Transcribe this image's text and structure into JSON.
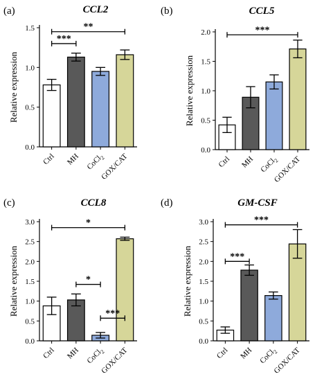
{
  "chart_data": [
    {
      "type": "bar",
      "panel": "(a)",
      "title": "CCL2",
      "ylabel": "Relative expression",
      "ylim": [
        0,
        1.5
      ],
      "yticks": [
        "0.0",
        "0.5",
        "1.0",
        "1.5"
      ],
      "categories": [
        "Ctrl",
        "MH",
        "CoCl2",
        "GOX/CAT"
      ],
      "values": [
        0.78,
        1.13,
        0.95,
        1.16
      ],
      "errors": [
        0.07,
        0.05,
        0.05,
        0.06
      ],
      "colors": [
        "#ffffff",
        "#595959",
        "#8eaadb",
        "#d6d699"
      ],
      "significance": [
        {
          "from": 0,
          "to": 1,
          "label": "***",
          "y": 1.3
        },
        {
          "from": 0,
          "to": 3,
          "label": "**",
          "y": 1.45
        }
      ]
    },
    {
      "type": "bar",
      "panel": "(b)",
      "title": "CCL5",
      "ylabel": "Relative expression",
      "ylim": [
        0,
        2.0
      ],
      "yticks": [
        "0.0",
        "0.5",
        "1.0",
        "1.5",
        "2.0"
      ],
      "categories": [
        "Ctrl",
        "MH",
        "CoCl2",
        "GOX/CAT"
      ],
      "values": [
        0.42,
        0.89,
        1.15,
        1.71
      ],
      "errors": [
        0.13,
        0.18,
        0.12,
        0.15
      ],
      "colors": [
        "#ffffff",
        "#595959",
        "#8eaadb",
        "#d6d699"
      ],
      "significance": [
        {
          "from": 0,
          "to": 3,
          "label": "***",
          "y": 1.95
        }
      ]
    },
    {
      "type": "bar",
      "panel": "(c)",
      "title": "CCL8",
      "ylabel": "Relative expression",
      "ylim": [
        0,
        3.0
      ],
      "yticks": [
        "0.0",
        "0.5",
        "1.0",
        "1.5",
        "2.0",
        "2.5",
        "3.0"
      ],
      "categories": [
        "Ctrl",
        "MH",
        "CoCl2",
        "GOX/CAT"
      ],
      "values": [
        0.88,
        1.03,
        0.14,
        2.57
      ],
      "errors": [
        0.22,
        0.15,
        0.07,
        0.04
      ],
      "colors": [
        "#ffffff",
        "#595959",
        "#8eaadb",
        "#d6d699"
      ],
      "significance": [
        {
          "from": 0,
          "to": 3,
          "label": "*",
          "y": 2.85
        },
        {
          "from": 1,
          "to": 2,
          "label": "*",
          "y": 1.42
        },
        {
          "from": 2,
          "to": 3,
          "label": "***",
          "y": 0.57
        }
      ]
    },
    {
      "type": "bar",
      "panel": "(d)",
      "title": "GM-CSF",
      "ylabel": "Relative expression",
      "ylim": [
        0,
        3.0
      ],
      "yticks": [
        "0.0",
        "0.5",
        "1.0",
        "1.5",
        "2.0",
        "2.5",
        "3.0"
      ],
      "categories": [
        "Ctrl",
        "MH",
        "CoCl2",
        "GOX/CAT"
      ],
      "values": [
        0.27,
        1.78,
        1.14,
        2.44
      ],
      "errors": [
        0.08,
        0.13,
        0.09,
        0.36
      ],
      "colors": [
        "#ffffff",
        "#595959",
        "#8eaadb",
        "#d6d699"
      ],
      "significance": [
        {
          "from": 0,
          "to": 1,
          "label": "***",
          "y": 2.0
        },
        {
          "from": 0,
          "to": 3,
          "label": "***",
          "y": 2.92
        }
      ]
    }
  ]
}
